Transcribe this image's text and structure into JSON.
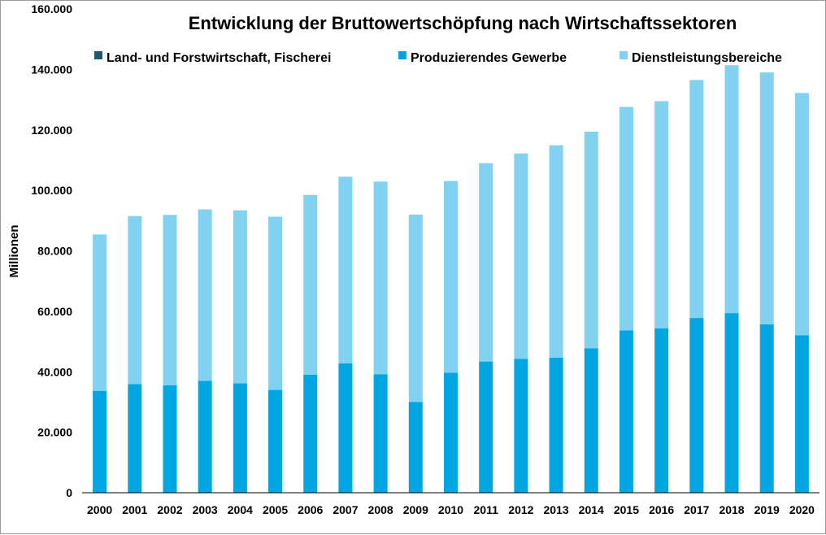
{
  "chart_data": {
    "type": "bar",
    "stacked": true,
    "title": "Entwicklung der Bruttowertschöpfung nach Wirtschaftssektoren",
    "xlabel": "",
    "ylabel": "Millionen",
    "ylim": [
      0,
      160000
    ],
    "yticks": [
      "0",
      "20.000",
      "40.000",
      "60.000",
      "80.000",
      "100.000",
      "120.000",
      "140.000",
      "160.000"
    ],
    "grid": false,
    "legend_position": "top",
    "categories": [
      "2000",
      "2001",
      "2002",
      "2003",
      "2004",
      "2005",
      "2006",
      "2007",
      "2008",
      "2009",
      "2010",
      "2011",
      "2012",
      "2013",
      "2014",
      "2015",
      "2016",
      "2017",
      "2018",
      "2019",
      "2020"
    ],
    "series": [
      {
        "name": "Land- und Forstwirtschaft, Fischerei",
        "color": "#1a5a6e",
        "values": [
          0,
          0,
          0,
          0,
          0,
          0,
          0,
          0,
          0,
          0,
          0,
          0,
          0,
          0,
          0,
          0,
          0,
          0,
          0,
          0,
          0
        ]
      },
      {
        "name": "Produzierendes Gewerbe",
        "color": "#00a6e2",
        "values": [
          33700,
          35900,
          35500,
          37000,
          36200,
          34000,
          39000,
          42800,
          39200,
          30000,
          39700,
          43400,
          44300,
          44700,
          47800,
          53700,
          54400,
          57800,
          59400,
          55700,
          52100
        ]
      },
      {
        "name": "Dienstleistungsbereiche",
        "color": "#80d2f0",
        "values": [
          51700,
          55600,
          56400,
          56700,
          57200,
          57300,
          59500,
          61700,
          63700,
          62000,
          63400,
          65600,
          67900,
          70200,
          71600,
          73900,
          75100,
          78700,
          82000,
          83300,
          80100
        ]
      }
    ]
  }
}
